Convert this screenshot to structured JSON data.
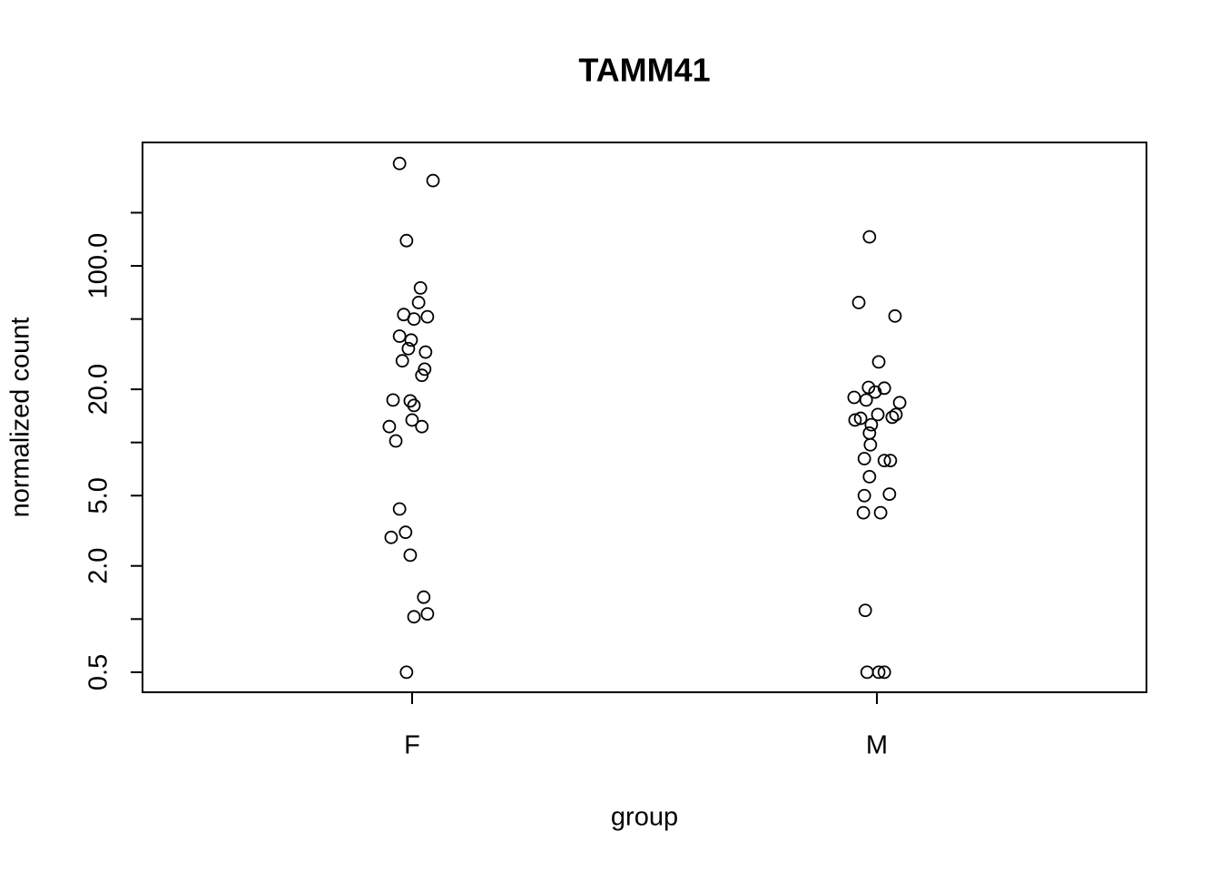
{
  "chart_data": {
    "type": "scatter",
    "title": "TAMM41",
    "x_label": "group",
    "y_label": "normalized count",
    "y_scale": "log",
    "marker": "open-circle",
    "color": "#000000",
    "xlim": [
      0.42,
      2.58
    ],
    "xticks": [
      {
        "value": 1,
        "label": "F"
      },
      {
        "value": 2,
        "label": "M"
      }
    ],
    "ylim": [
      0.385,
      500
    ],
    "yticks": [
      {
        "value": 0.5,
        "label": "0.5"
      },
      {
        "value": 1,
        "label": null
      },
      {
        "value": 2,
        "label": "2.0"
      },
      {
        "value": 5,
        "label": "5.0"
      },
      {
        "value": 10,
        "label": null
      },
      {
        "value": 20,
        "label": "20.0"
      },
      {
        "value": 50,
        "label": null
      },
      {
        "value": 100,
        "label": "100.0"
      },
      {
        "value": 200,
        "label": null
      }
    ],
    "series": [
      {
        "color": "#000000",
        "x": [
          0.973,
          1.045,
          0.988,
          1.018,
          1.014,
          0.982,
          1.004,
          1.033,
          0.973,
          0.998,
          0.992,
          1.029,
          0.979,
          1.027,
          1.021,
          0.959,
          0.996,
          1.004,
          1.0,
          0.951,
          1.021,
          0.965,
          0.973,
          0.986,
          0.955,
          0.996,
          1.025,
          1.033,
          1.004,
          0.988
        ],
        "values": [
          380,
          304,
          139,
          75,
          62,
          53,
          50,
          51.5,
          40,
          38,
          34,
          32.5,
          29,
          26,
          24,
          17.4,
          17.2,
          16.2,
          13.4,
          12.3,
          12.3,
          10.2,
          4.2,
          3.1,
          2.9,
          2.3,
          1.33,
          1.07,
          1.03,
          0.5
        ]
      },
      {
        "color": "#000000",
        "x": [
          1.984,
          1.961,
          2.039,
          2.004,
          1.982,
          2.016,
          1.996,
          1.951,
          1.977,
          2.049,
          2.002,
          1.965,
          2.041,
          2.033,
          1.953,
          1.988,
          1.984,
          1.986,
          1.973,
          2.016,
          2.029,
          1.984,
          1.973,
          2.027,
          1.971,
          2.008,
          1.975,
          1.979,
          2.004,
          2.016
        ],
        "values": [
          146,
          62,
          52,
          28.6,
          20.5,
          20.3,
          19.3,
          18,
          17.4,
          16.8,
          14.4,
          13.7,
          14.4,
          13.9,
          13.4,
          12.6,
          11.3,
          9.7,
          8.1,
          7.9,
          7.9,
          6.4,
          5.0,
          5.1,
          4.0,
          4.0,
          1.12,
          0.5,
          0.5,
          0.5
        ]
      }
    ]
  }
}
